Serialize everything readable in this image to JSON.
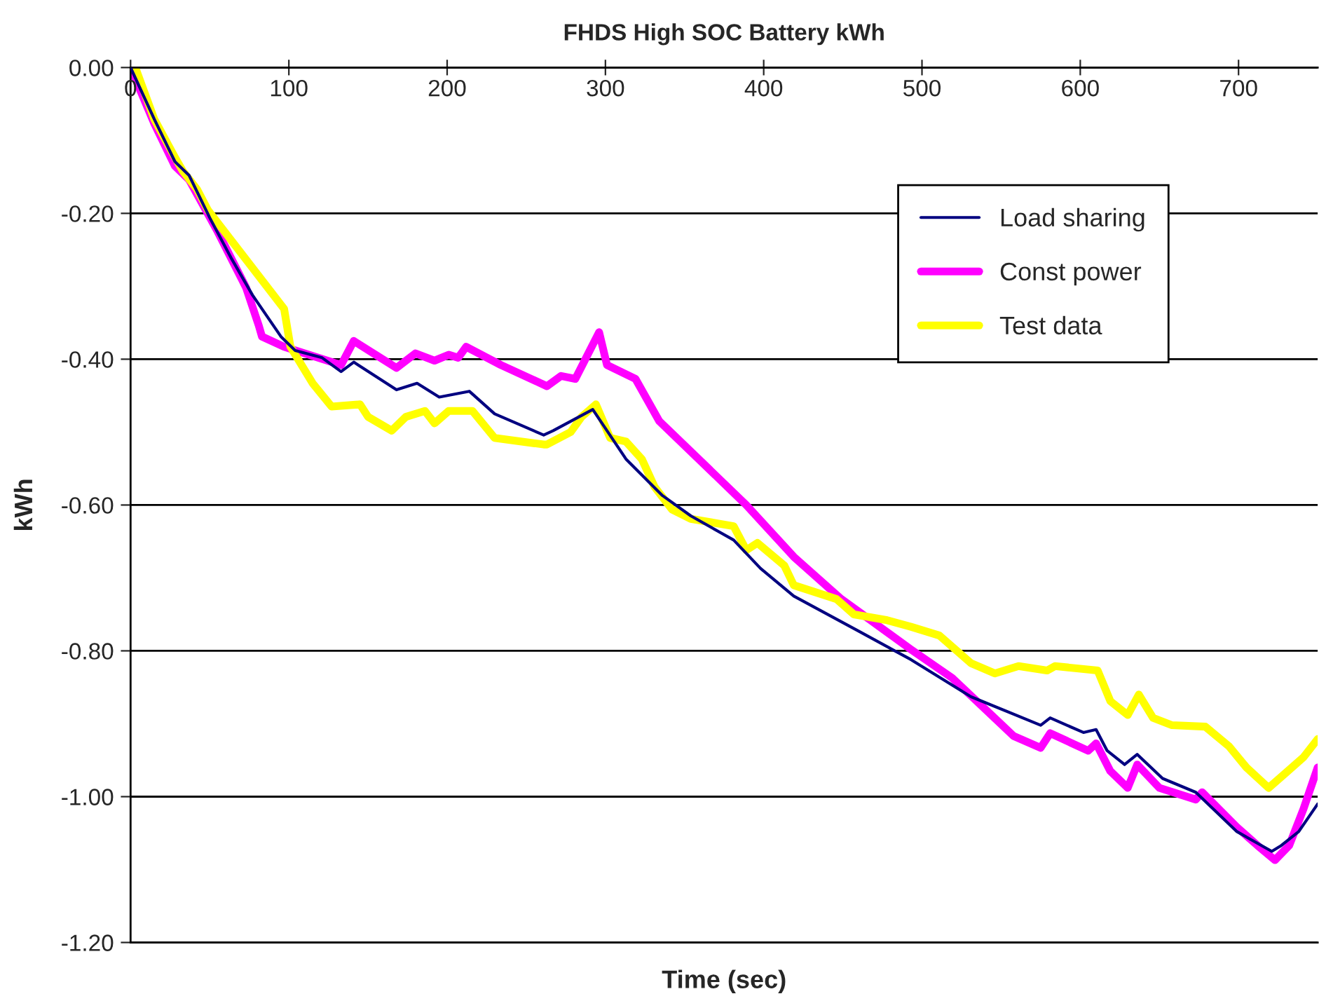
{
  "chart_data": {
    "type": "line",
    "title": "FHDS High SOC Battery kWh",
    "xlabel": "Time (sec)",
    "ylabel": "kWh",
    "xlim": [
      0,
      750
    ],
    "xticks": [
      0,
      100,
      200,
      300,
      400,
      500,
      600,
      700
    ],
    "ylim": [
      -1.2,
      0
    ],
    "yticks": [
      {
        "value": -1.2,
        "label": "-1.20"
      },
      {
        "value": -1.0,
        "label": "-1.00"
      },
      {
        "value": -0.8,
        "label": "-0.80"
      },
      {
        "value": -0.6,
        "label": "-0.60"
      },
      {
        "value": -0.4,
        "label": "-0.40"
      },
      {
        "value": -0.2,
        "label": "-0.20"
      },
      {
        "value": 0,
        "label": "0.00"
      }
    ],
    "grid": "y",
    "legend": "top right",
    "marker": "none",
    "line_style": "solid",
    "series": [
      {
        "name": "Load sharing",
        "color": "#000080",
        "x": [
          0,
          15,
          28,
          37,
          50,
          64,
          77,
          95,
          104,
          121,
          133,
          141,
          168,
          181,
          195,
          214,
          230,
          261,
          267,
          292,
          313,
          336,
          354,
          381,
          398,
          419,
          460,
          493,
          531,
          575,
          581,
          602,
          610,
          617,
          628,
          636,
          652,
          673,
          699,
          721,
          727,
          738,
          750
        ],
        "values": [
          0,
          -0.071,
          -0.129,
          -0.148,
          -0.206,
          -0.263,
          -0.312,
          -0.369,
          -0.388,
          -0.398,
          -0.417,
          -0.404,
          -0.442,
          -0.433,
          -0.452,
          -0.444,
          -0.475,
          -0.504,
          -0.498,
          -0.469,
          -0.537,
          -0.587,
          -0.615,
          -0.648,
          -0.687,
          -0.725,
          -0.773,
          -0.812,
          -0.863,
          -0.902,
          -0.892,
          -0.912,
          -0.908,
          -0.937,
          -0.956,
          -0.942,
          -0.975,
          -0.994,
          -1.048,
          -1.075,
          -1.067,
          -1.048,
          -1.01
        ]
      },
      {
        "name": "Const power",
        "color": "#ff00ff",
        "x": [
          0,
          15,
          28,
          37,
          55,
          73,
          81,
          83,
          97,
          133,
          141,
          168,
          180,
          192,
          201,
          207,
          212,
          234,
          263,
          272,
          281,
          296,
          301,
          319,
          334,
          389,
          419,
          449,
          493,
          519,
          558,
          575,
          581,
          605,
          610,
          619,
          630,
          636,
          650,
          673,
          677,
          699,
          712,
          723,
          732,
          741,
          750
        ],
        "values": [
          0,
          -0.077,
          -0.135,
          -0.154,
          -0.225,
          -0.302,
          -0.354,
          -0.369,
          -0.383,
          -0.408,
          -0.375,
          -0.412,
          -0.392,
          -0.402,
          -0.394,
          -0.398,
          -0.383,
          -0.408,
          -0.437,
          -0.423,
          -0.427,
          -0.363,
          -0.408,
          -0.427,
          -0.485,
          -0.6,
          -0.671,
          -0.729,
          -0.798,
          -0.837,
          -0.917,
          -0.933,
          -0.913,
          -0.937,
          -0.927,
          -0.965,
          -0.988,
          -0.956,
          -0.988,
          -1.004,
          -0.994,
          -1.042,
          -1.067,
          -1.087,
          -1.067,
          -1.017,
          -0.96
        ]
      },
      {
        "name": "Test data",
        "color": "#ffff00",
        "x": [
          3,
          15,
          28,
          33,
          42,
          49,
          97,
          101,
          115,
          127,
          145,
          150,
          165,
          174,
          186,
          192,
          201,
          216,
          230,
          261,
          263,
          278,
          285,
          294,
          303,
          313,
          323,
          331,
          342,
          354,
          381,
          389,
          396,
          413,
          419,
          446,
          457,
          478,
          493,
          511,
          531,
          546,
          561,
          579,
          584,
          611,
          619,
          630,
          637,
          646,
          658,
          679,
          694,
          705,
          719,
          729,
          741,
          750
        ],
        "values": [
          0,
          -0.071,
          -0.123,
          -0.142,
          -0.167,
          -0.196,
          -0.331,
          -0.383,
          -0.433,
          -0.465,
          -0.462,
          -0.479,
          -0.498,
          -0.479,
          -0.471,
          -0.488,
          -0.471,
          -0.471,
          -0.508,
          -0.517,
          -0.517,
          -0.5,
          -0.479,
          -0.462,
          -0.508,
          -0.513,
          -0.537,
          -0.575,
          -0.606,
          -0.619,
          -0.629,
          -0.662,
          -0.652,
          -0.683,
          -0.71,
          -0.729,
          -0.75,
          -0.758,
          -0.767,
          -0.779,
          -0.817,
          -0.831,
          -0.821,
          -0.827,
          -0.821,
          -0.827,
          -0.869,
          -0.888,
          -0.86,
          -0.892,
          -0.902,
          -0.904,
          -0.931,
          -0.96,
          -0.988,
          -0.969,
          -0.946,
          -0.921
        ]
      }
    ]
  }
}
